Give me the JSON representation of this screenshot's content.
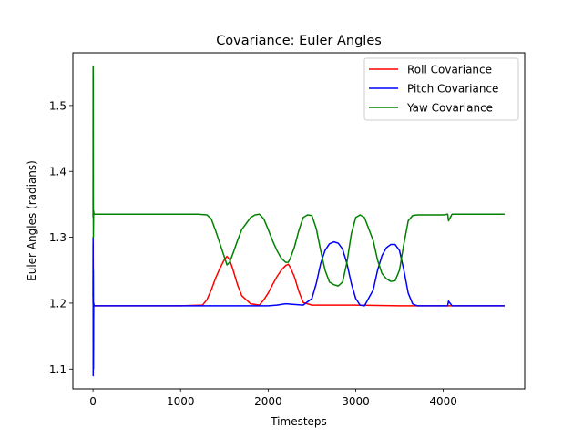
{
  "chart_data": {
    "type": "line",
    "title": "Covariance: Euler Angles",
    "xlabel": "Timesteps",
    "ylabel": "Euler Angles (radians)",
    "xlim": [
      -230,
      4930
    ],
    "ylim": [
      1.07,
      1.58
    ],
    "xticks": [
      0,
      1000,
      2000,
      3000,
      4000
    ],
    "xtick_labels": [
      "0",
      "1000",
      "2000",
      "3000",
      "4000"
    ],
    "yticks": [
      1.1,
      1.2,
      1.3,
      1.4,
      1.5
    ],
    "ytick_labels": [
      "1.1",
      "1.2",
      "1.3",
      "1.4",
      "1.5"
    ],
    "grid": false,
    "legend_position": "top-right",
    "series": [
      {
        "name": "Roll Covariance",
        "color": "#ff0000",
        "x": [
          0,
          1,
          3,
          5,
          8,
          10,
          20,
          100,
          500,
          1000,
          1250,
          1300,
          1350,
          1400,
          1450,
          1500,
          1530,
          1560,
          1600,
          1650,
          1700,
          1800,
          1900,
          1950,
          2000,
          2050,
          2100,
          2150,
          2200,
          2230,
          2250,
          2300,
          2350,
          2400,
          2500,
          2800,
          3000,
          3500,
          4000,
          4700
        ],
        "y": [
          1.21,
          1.29,
          1.23,
          1.13,
          1.2,
          1.196,
          1.196,
          1.196,
          1.196,
          1.196,
          1.197,
          1.205,
          1.22,
          1.238,
          1.253,
          1.266,
          1.271,
          1.266,
          1.25,
          1.228,
          1.211,
          1.199,
          1.197,
          1.205,
          1.215,
          1.228,
          1.24,
          1.25,
          1.257,
          1.259,
          1.255,
          1.24,
          1.218,
          1.201,
          1.197,
          1.197,
          1.197,
          1.196,
          1.196,
          1.196
        ]
      },
      {
        "name": "Pitch Covariance",
        "color": "#0000ff",
        "x": [
          0,
          1,
          2,
          3,
          5,
          7,
          10,
          20,
          100,
          500,
          1000,
          1500,
          2000,
          2100,
          2200,
          2300,
          2400,
          2500,
          2550,
          2600,
          2650,
          2700,
          2750,
          2800,
          2850,
          2900,
          2950,
          3000,
          3050,
          3100,
          3200,
          3250,
          3300,
          3350,
          3400,
          3450,
          3500,
          3550,
          3600,
          3650,
          3700,
          4000,
          4050,
          4060,
          4100,
          4700
        ],
        "y": [
          1.2,
          1.3,
          1.09,
          1.25,
          1.1,
          1.2,
          1.196,
          1.196,
          1.196,
          1.196,
          1.196,
          1.196,
          1.196,
          1.197,
          1.199,
          1.198,
          1.197,
          1.207,
          1.23,
          1.26,
          1.28,
          1.29,
          1.293,
          1.291,
          1.282,
          1.26,
          1.23,
          1.207,
          1.197,
          1.196,
          1.22,
          1.25,
          1.272,
          1.284,
          1.289,
          1.289,
          1.28,
          1.25,
          1.215,
          1.199,
          1.196,
          1.196,
          1.196,
          1.203,
          1.196,
          1.196
        ]
      },
      {
        "name": "Yaw Covariance",
        "color": "#008000",
        "x": [
          0,
          1,
          2,
          4,
          7,
          10,
          20,
          100,
          500,
          1000,
          1200,
          1300,
          1350,
          1400,
          1450,
          1500,
          1530,
          1560,
          1600,
          1650,
          1700,
          1800,
          1850,
          1900,
          1950,
          2000,
          2050,
          2100,
          2150,
          2200,
          2230,
          2250,
          2300,
          2350,
          2400,
          2450,
          2500,
          2550,
          2600,
          2650,
          2700,
          2750,
          2800,
          2850,
          2900,
          2950,
          3000,
          3050,
          3100,
          3200,
          3250,
          3300,
          3350,
          3400,
          3450,
          3500,
          3550,
          3600,
          3650,
          3700,
          4000,
          4050,
          4060,
          4100,
          4700
        ],
        "y": [
          1.33,
          1.56,
          1.54,
          1.3,
          1.34,
          1.335,
          1.335,
          1.335,
          1.335,
          1.335,
          1.335,
          1.334,
          1.328,
          1.31,
          1.29,
          1.27,
          1.258,
          1.262,
          1.276,
          1.295,
          1.312,
          1.33,
          1.334,
          1.335,
          1.328,
          1.312,
          1.295,
          1.28,
          1.268,
          1.262,
          1.262,
          1.267,
          1.285,
          1.31,
          1.33,
          1.334,
          1.333,
          1.313,
          1.28,
          1.25,
          1.232,
          1.228,
          1.226,
          1.232,
          1.262,
          1.305,
          1.33,
          1.334,
          1.33,
          1.295,
          1.265,
          1.245,
          1.237,
          1.233,
          1.234,
          1.25,
          1.29,
          1.325,
          1.333,
          1.334,
          1.334,
          1.335,
          1.325,
          1.335,
          1.335
        ]
      }
    ]
  }
}
